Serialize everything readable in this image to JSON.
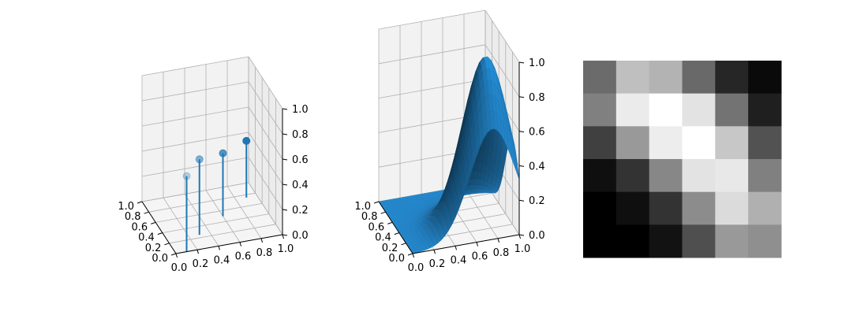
{
  "chart_data": [
    {
      "type": "scatter",
      "subtype": "3d-stem",
      "x": [
        0.1,
        0.3,
        0.6,
        0.9
      ],
      "y": [
        0.0,
        0.25,
        0.5,
        0.75
      ],
      "z": [
        0.6,
        0.6,
        0.5,
        0.45
      ],
      "color": "#1f77b4",
      "xlim": [
        0,
        1
      ],
      "ylim": [
        0,
        1
      ],
      "zlim": [
        0,
        1
      ],
      "xticks": [
        "0.0",
        "0.2",
        "0.4",
        "0.6",
        "0.8",
        "1.0"
      ],
      "yticks": [
        "0.0",
        "0.2",
        "0.4",
        "0.6",
        "0.8",
        "1.0"
      ],
      "zticks": [
        "0.0",
        "0.2",
        "0.4",
        "0.6",
        "0.8",
        "1.0"
      ],
      "grid": true
    },
    {
      "type": "area",
      "subtype": "3d-surface",
      "function": "exp(-((x-0.75)^2 + (y-0.2)^2) / 0.09)",
      "color": "#1f77b4",
      "xlim": [
        0,
        1
      ],
      "ylim": [
        0,
        1
      ],
      "zlim": [
        0,
        1
      ],
      "xticks": [
        "0.0",
        "0.2",
        "0.4",
        "0.6",
        "0.8",
        "1.0"
      ],
      "yticks": [
        "0.0",
        "0.2",
        "0.4",
        "0.6",
        "0.8",
        "1.0"
      ],
      "zticks": [
        "0.0",
        "0.2",
        "0.4",
        "0.6",
        "0.8",
        "1.0"
      ],
      "grid": true
    },
    {
      "type": "heatmap",
      "colormap": "gray",
      "vmin": 0,
      "vmax": 1,
      "values": [
        [
          0.42,
          0.75,
          0.7,
          0.41,
          0.15,
          0.04
        ],
        [
          0.5,
          0.92,
          1.0,
          0.89,
          0.45,
          0.12
        ],
        [
          0.25,
          0.6,
          0.93,
          1.0,
          0.78,
          0.32
        ],
        [
          0.06,
          0.2,
          0.53,
          0.89,
          0.91,
          0.5
        ],
        [
          0.0,
          0.06,
          0.2,
          0.55,
          0.86,
          0.69
        ],
        [
          0.0,
          0.0,
          0.07,
          0.31,
          0.6,
          0.56
        ]
      ]
    }
  ]
}
